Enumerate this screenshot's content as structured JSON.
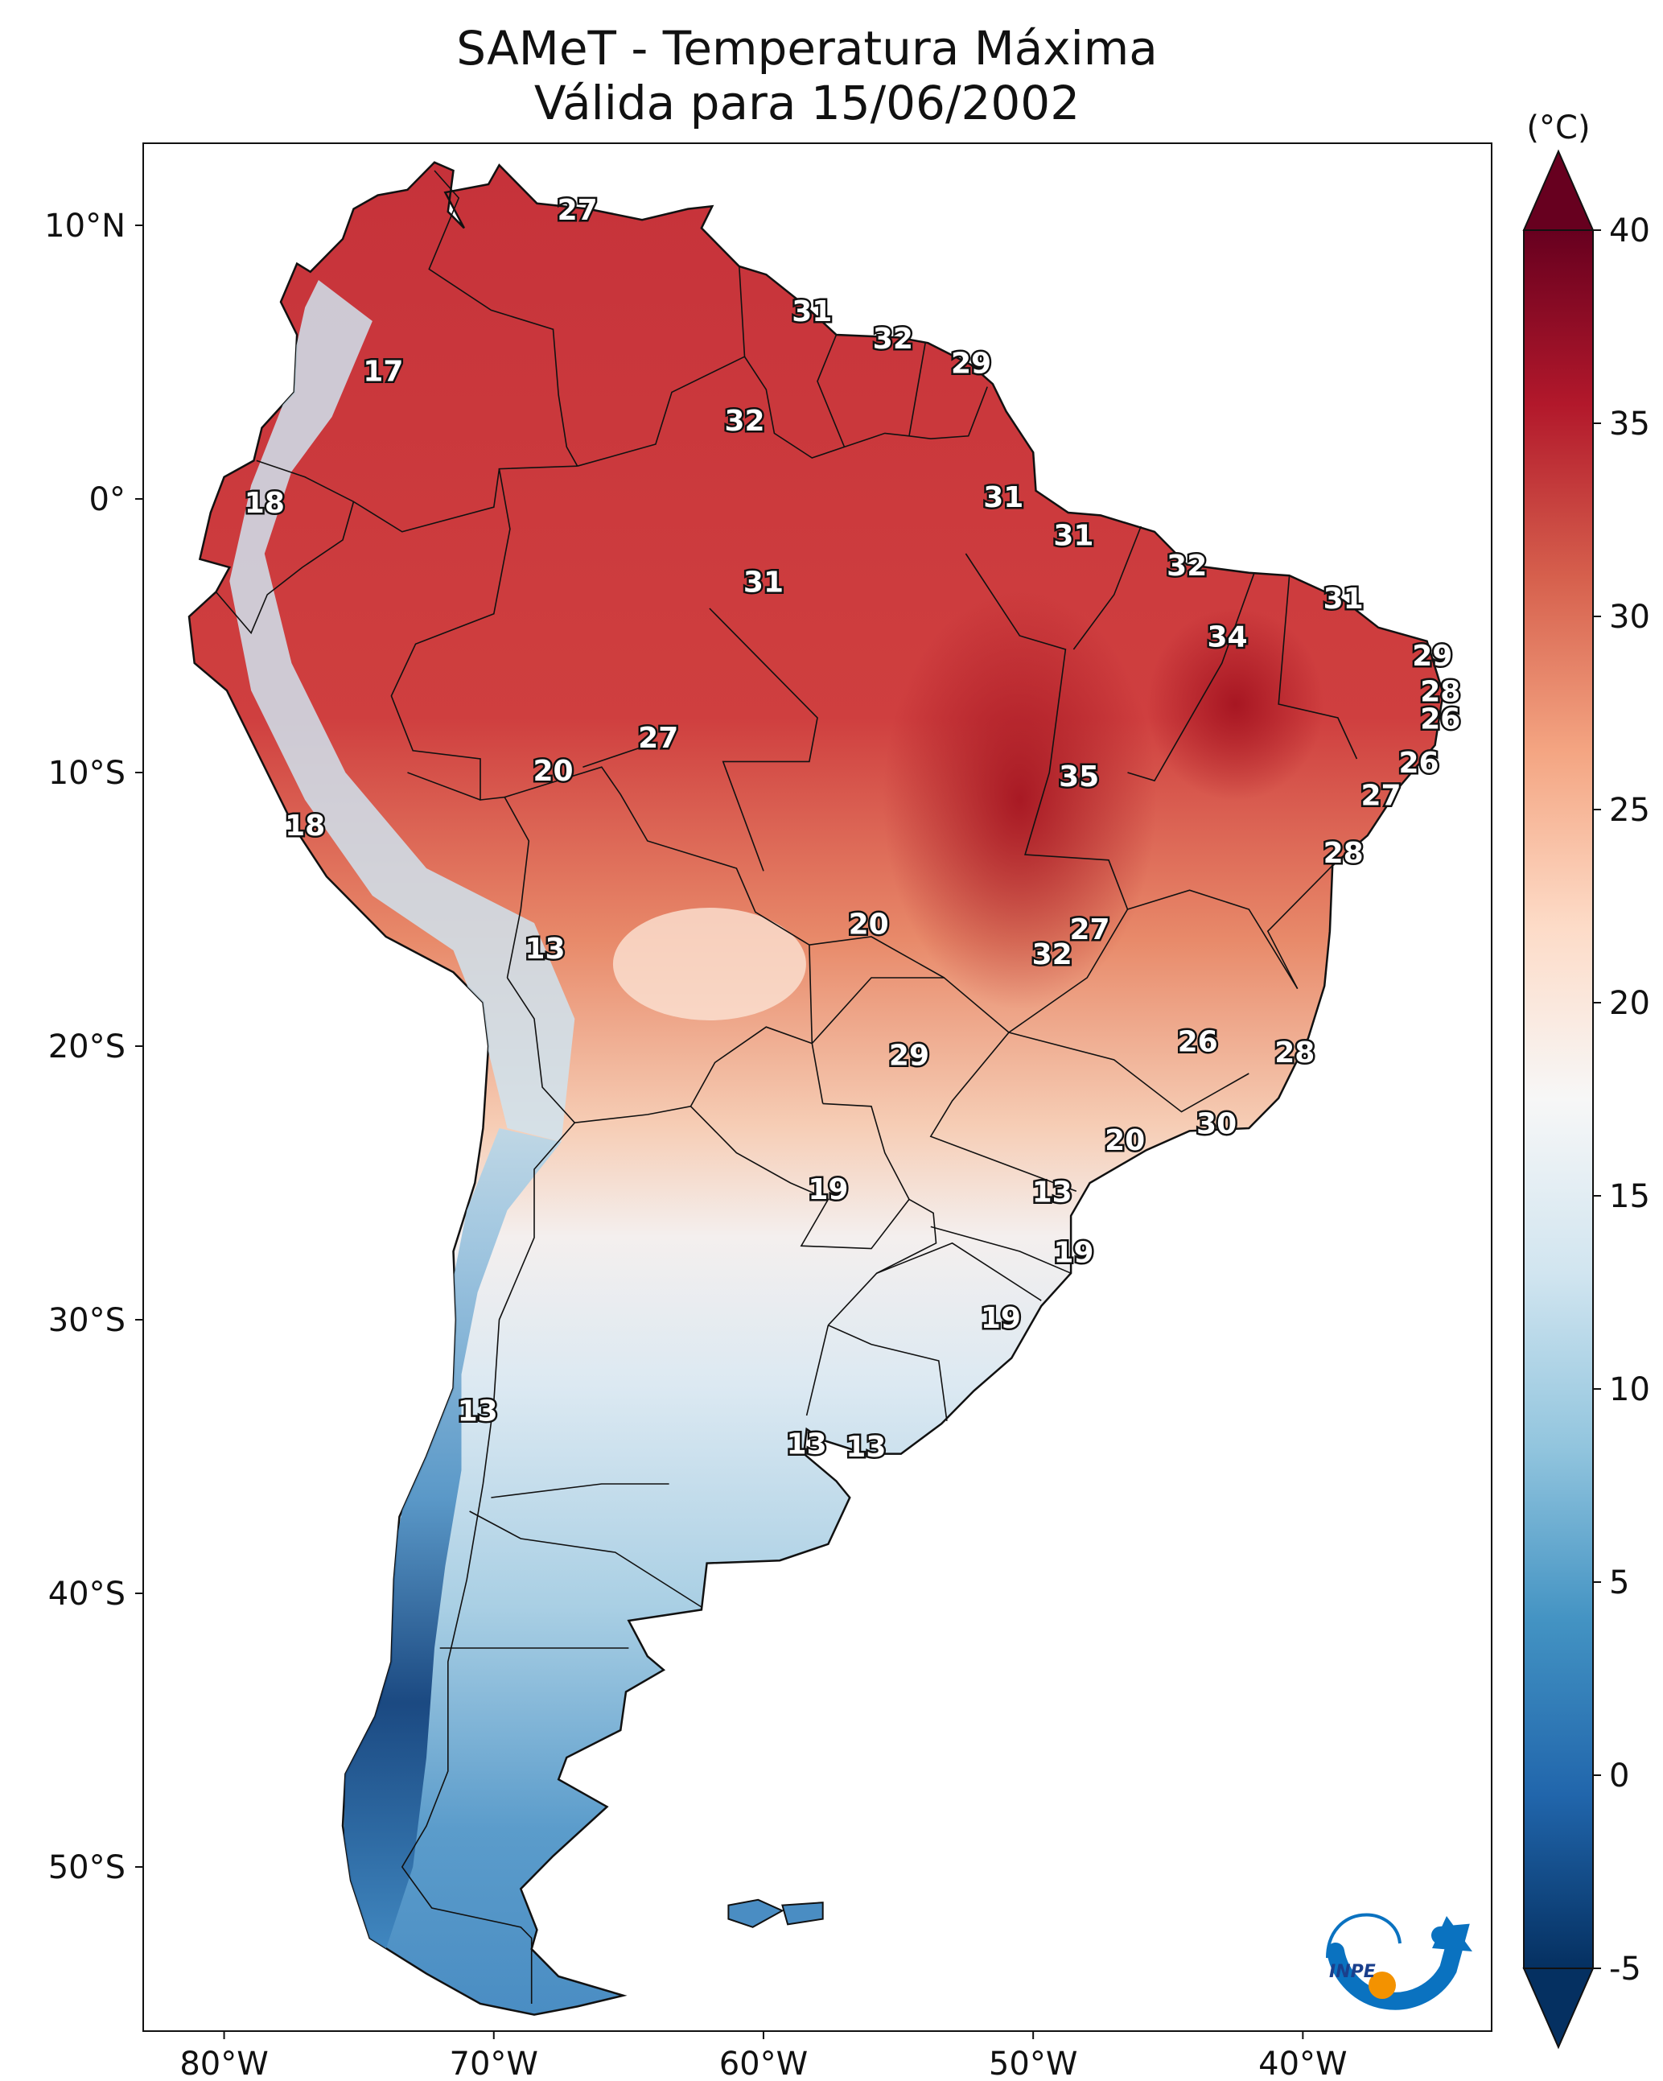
{
  "title": {
    "line1": "SAMeT - Temperatura Máxima",
    "line2": "Válida para 15/06/2002"
  },
  "map": {
    "lon_range": [
      -83,
      -33
    ],
    "lat_range": [
      -56,
      13
    ],
    "x_ticks": [
      {
        "lon": -80,
        "label": "80°W"
      },
      {
        "lon": -70,
        "label": "70°W"
      },
      {
        "lon": -60,
        "label": "60°W"
      },
      {
        "lon": -50,
        "label": "50°W"
      },
      {
        "lon": -40,
        "label": "40°W"
      }
    ],
    "y_ticks": [
      {
        "lat": 10,
        "label": "10°N"
      },
      {
        "lat": 0,
        "label": "0°"
      },
      {
        "lat": -10,
        "label": "10°S"
      },
      {
        "lat": -20,
        "label": "20°S"
      },
      {
        "lat": -30,
        "label": "30°S"
      },
      {
        "lat": -40,
        "label": "40°S"
      },
      {
        "lat": -50,
        "label": "50°S"
      }
    ]
  },
  "city_values": [
    {
      "lon": -66.9,
      "lat": 10.5,
      "value": "27"
    },
    {
      "lon": -74.1,
      "lat": 4.6,
      "value": "17"
    },
    {
      "lon": -78.5,
      "lat": -0.2,
      "value": "18"
    },
    {
      "lon": -58.2,
      "lat": 6.8,
      "value": "31"
    },
    {
      "lon": -55.2,
      "lat": 5.8,
      "value": "32"
    },
    {
      "lon": -52.3,
      "lat": 4.9,
      "value": "29"
    },
    {
      "lon": -60.7,
      "lat": 2.8,
      "value": "32"
    },
    {
      "lon": -51.1,
      "lat": 0.0,
      "value": "31"
    },
    {
      "lon": -48.5,
      "lat": -1.4,
      "value": "31"
    },
    {
      "lon": -60.0,
      "lat": -3.1,
      "value": "31"
    },
    {
      "lon": -44.3,
      "lat": -2.5,
      "value": "32"
    },
    {
      "lon": -38.5,
      "lat": -3.7,
      "value": "31"
    },
    {
      "lon": -42.8,
      "lat": -5.1,
      "value": "34"
    },
    {
      "lon": -35.2,
      "lat": -5.8,
      "value": "29"
    },
    {
      "lon": -34.9,
      "lat": -7.1,
      "value": "28"
    },
    {
      "lon": -34.9,
      "lat": -8.1,
      "value": "26"
    },
    {
      "lon": -35.7,
      "lat": -9.7,
      "value": "26"
    },
    {
      "lon": -37.1,
      "lat": -10.9,
      "value": "27"
    },
    {
      "lon": -38.5,
      "lat": -13.0,
      "value": "28"
    },
    {
      "lon": -63.9,
      "lat": -8.8,
      "value": "27"
    },
    {
      "lon": -67.8,
      "lat": -10.0,
      "value": "20"
    },
    {
      "lon": -48.3,
      "lat": -10.2,
      "value": "35"
    },
    {
      "lon": -77.0,
      "lat": -12.0,
      "value": "18"
    },
    {
      "lon": -56.1,
      "lat": -15.6,
      "value": "20"
    },
    {
      "lon": -47.9,
      "lat": -15.8,
      "value": "27"
    },
    {
      "lon": -49.3,
      "lat": -16.7,
      "value": "32"
    },
    {
      "lon": -68.1,
      "lat": -16.5,
      "value": "13"
    },
    {
      "lon": -43.9,
      "lat": -19.9,
      "value": "26"
    },
    {
      "lon": -40.3,
      "lat": -20.3,
      "value": "28"
    },
    {
      "lon": -54.6,
      "lat": -20.4,
      "value": "29"
    },
    {
      "lon": -43.2,
      "lat": -22.9,
      "value": "30"
    },
    {
      "lon": -46.6,
      "lat": -23.5,
      "value": "20"
    },
    {
      "lon": -49.3,
      "lat": -25.4,
      "value": "13"
    },
    {
      "lon": -57.6,
      "lat": -25.3,
      "value": "19"
    },
    {
      "lon": -48.5,
      "lat": -27.6,
      "value": "19"
    },
    {
      "lon": -51.2,
      "lat": -30.0,
      "value": "19"
    },
    {
      "lon": -70.6,
      "lat": -33.4,
      "value": "13"
    },
    {
      "lon": -58.4,
      "lat": -34.6,
      "value": "13"
    },
    {
      "lon": -56.2,
      "lat": -34.7,
      "value": "13"
    }
  ],
  "colorbar": {
    "unit": "(°C)",
    "min": -5,
    "max": 40,
    "ticks": [
      {
        "value": 40,
        "label": "40"
      },
      {
        "value": 35,
        "label": "35"
      },
      {
        "value": 30,
        "label": "30"
      },
      {
        "value": 25,
        "label": "25"
      },
      {
        "value": 20,
        "label": "20"
      },
      {
        "value": 15,
        "label": "15"
      },
      {
        "value": 10,
        "label": "10"
      },
      {
        "value": 5,
        "label": "5"
      },
      {
        "value": 0,
        "label": "0"
      },
      {
        "value": -5,
        "label": "-5"
      }
    ],
    "colors": [
      "#053061",
      "#2166ac",
      "#4393c3",
      "#92c5de",
      "#d1e5f0",
      "#f7f7f7",
      "#fddbc7",
      "#f4a582",
      "#d6604d",
      "#b2182b",
      "#67001f"
    ]
  },
  "logo": {
    "text": "INPE",
    "arrow_color": "#0a72c0",
    "dot_color": "#f39200"
  }
}
